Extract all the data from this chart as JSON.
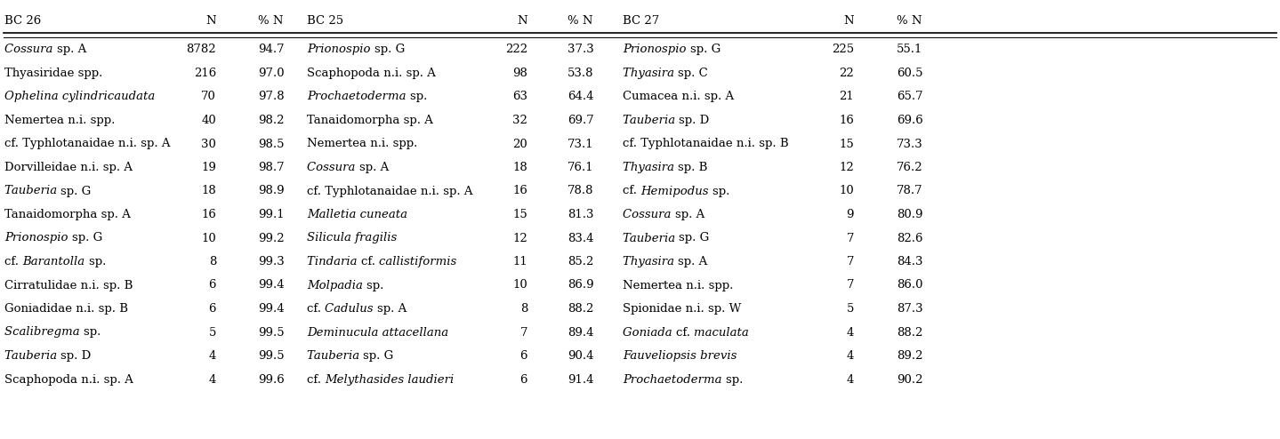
{
  "title_row": [
    "BC 26",
    "N",
    "% N",
    "BC 25",
    "N",
    "% N",
    "BC 27",
    "N",
    "% N"
  ],
  "bc26_data": [
    [
      "Cossura sp. A",
      "8782",
      "94.7",
      true
    ],
    [
      "Thyasiridae spp.",
      "216",
      "97.0",
      false
    ],
    [
      "Ophelina cylindricaudata",
      "70",
      "97.8",
      true
    ],
    [
      "Nemertea n.i. spp.",
      "40",
      "98.2",
      false
    ],
    [
      "cf. Typhlotanaidae n.i. sp. A",
      "30",
      "98.5",
      false
    ],
    [
      "Dorvilleidae n.i. sp. A",
      "19",
      "98.7",
      false
    ],
    [
      "Tauberia sp. G",
      "18",
      "98.9",
      true
    ],
    [
      "Tanaidomorpha sp. A",
      "16",
      "99.1",
      false
    ],
    [
      "Prionospio sp. G",
      "10",
      "99.2",
      false
    ],
    [
      "cf. Barantolla sp.",
      "8",
      "99.3",
      false
    ],
    [
      "Cirratulidae n.i. sp. B",
      "6",
      "99.4",
      false
    ],
    [
      "Goniadidae n.i. sp. B",
      "6",
      "99.4",
      false
    ],
    [
      "Scalibregma sp.",
      "5",
      "99.5",
      true
    ],
    [
      "Tauberia sp. D",
      "4",
      "99.5",
      true
    ],
    [
      "Scaphopoda n.i. sp. A",
      "4",
      "99.6",
      false
    ]
  ],
  "bc25_data": [
    [
      "Prionospio sp. G",
      "222",
      "37.3",
      true
    ],
    [
      "Scaphopoda n.i. sp. A",
      "98",
      "53.8",
      false
    ],
    [
      "Prochaetoderma sp.",
      "63",
      "64.4",
      true
    ],
    [
      "Tanaidomorpha sp. A",
      "32",
      "69.7",
      false
    ],
    [
      "Nemertea n.i. spp.",
      "20",
      "73.1",
      false
    ],
    [
      "Cossura sp. A",
      "18",
      "76.1",
      true
    ],
    [
      "cf. Typhlotanaidae n.i. sp. A",
      "16",
      "78.8",
      false
    ],
    [
      "Malletia cuneata",
      "15",
      "81.3",
      true
    ],
    [
      "Silicula fragilis",
      "12",
      "83.4",
      true
    ],
    [
      "Tindaria cf. callistiformis",
      "11",
      "85.2",
      true
    ],
    [
      "Molpadia sp.",
      "10",
      "86.9",
      true
    ],
    [
      "cf. Cadulus sp. A",
      "8",
      "88.2",
      false
    ],
    [
      "Deminucula attacellana",
      "7",
      "89.4",
      true
    ],
    [
      "Tauberia sp. G",
      "6",
      "90.4",
      true
    ],
    [
      "cf. Melythasides laudieri",
      "6",
      "91.4",
      false
    ]
  ],
  "bc27_data": [
    [
      "Prionospio sp. G",
      "225",
      "55.1",
      true
    ],
    [
      "Thyasira sp. C",
      "22",
      "60.5",
      true
    ],
    [
      "Cumacea n.i. sp. A",
      "21",
      "65.7",
      false
    ],
    [
      "Tauberia sp. D",
      "16",
      "69.6",
      true
    ],
    [
      "cf. Typhlotanaidae n.i. sp. B",
      "15",
      "73.3",
      false
    ],
    [
      "Thyasira sp. B",
      "12",
      "76.2",
      true
    ],
    [
      "cf. Hemipodus sp.",
      "10",
      "78.7",
      false
    ],
    [
      "Cossura sp. A",
      "9",
      "80.9",
      true
    ],
    [
      "Tauberia sp. G",
      "7",
      "82.6",
      true
    ],
    [
      "Thyasira sp. A",
      "7",
      "84.3",
      true
    ],
    [
      "Nemertea n.i. spp.",
      "7",
      "86.0",
      false
    ],
    [
      "Spionidae n.i. sp. W",
      "5",
      "87.3",
      false
    ],
    [
      "Goniada cf. maculata",
      "4",
      "88.2",
      true
    ],
    [
      "Fauveliopsis brevis",
      "4",
      "89.2",
      true
    ],
    [
      "Prochaetoderma sp.",
      "4",
      "90.2",
      true
    ]
  ],
  "italic_words": {
    "bc26_italic_map": [
      [
        true,
        false
      ],
      [
        false,
        false
      ],
      [
        true,
        false
      ],
      [
        false,
        false
      ],
      [
        false,
        false
      ],
      [
        false,
        false
      ],
      [
        true,
        false
      ],
      [
        false,
        false
      ],
      [
        false,
        false
      ],
      [
        false,
        true
      ],
      [
        false,
        false
      ],
      [
        false,
        false
      ],
      [
        true,
        false
      ],
      [
        true,
        false
      ],
      [
        false,
        false
      ]
    ],
    "bc25_italic_map": [
      [
        true,
        false
      ],
      [
        false,
        false
      ],
      [
        true,
        false
      ],
      [
        false,
        false
      ],
      [
        false,
        false
      ],
      [
        true,
        false
      ],
      [
        false,
        false
      ],
      [
        true,
        true
      ],
      [
        true,
        true
      ],
      [
        true,
        false
      ],
      [
        true,
        false
      ],
      [
        false,
        true,
        false
      ],
      [
        true,
        false
      ],
      [
        true,
        false
      ],
      [
        false,
        true,
        false
      ]
    ],
    "bc27_italic_map": [
      [
        true,
        false
      ],
      [
        true,
        false
      ],
      [
        false,
        false
      ],
      [
        true,
        false
      ],
      [
        false,
        false
      ],
      [
        true,
        false
      ],
      [
        false,
        true,
        false
      ],
      [
        true,
        false
      ],
      [
        true,
        false
      ],
      [
        true,
        false
      ],
      [
        false,
        false
      ],
      [
        false,
        false
      ],
      [
        true,
        false
      ],
      [
        true,
        false
      ],
      [
        true,
        false
      ]
    ]
  },
  "bg_color": "#ffffff",
  "text_color": "#000000",
  "fontsize": 9.5,
  "header_fontsize": 9.5
}
